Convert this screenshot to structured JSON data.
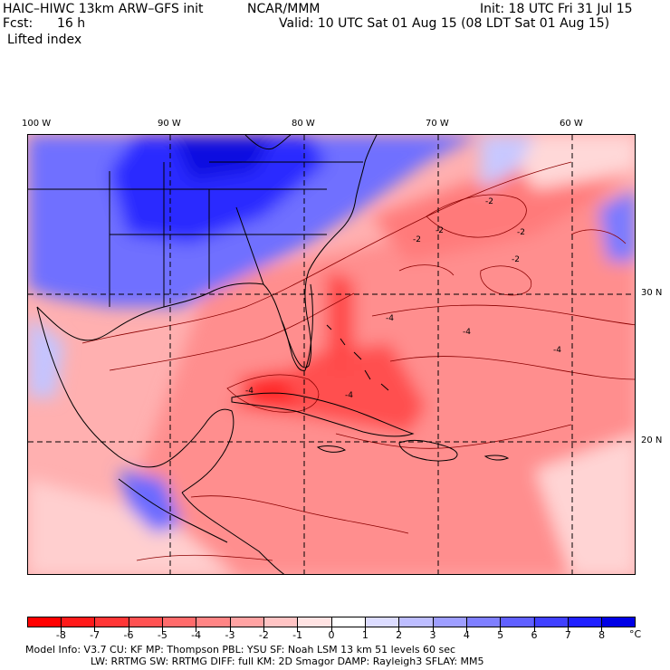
{
  "header": {
    "model": "HAIC–HIWC 13km ARW–GFS init",
    "org": "NCAR/MMM",
    "init": "Init: 18 UTC Fri 31 Jul 15",
    "fcst_label": "Fcst:",
    "fcst_value": "16 h",
    "valid": "Valid: 10 UTC Sat 01 Aug 15 (08 LDT Sat 01 Aug 15)",
    "field": "Lifted index"
  },
  "axes": {
    "lon_labels": [
      "100 W",
      "90 W",
      "80 W",
      "70 W",
      "60 W"
    ],
    "lat_labels": [
      "30 N",
      "20 N"
    ]
  },
  "contour_labels": [
    "-2",
    "-2",
    "-2",
    "-2",
    "-2",
    "-4",
    "-4",
    "-4",
    "-4",
    "-4"
  ],
  "colorbar": {
    "labels": [
      "-8",
      "-7",
      "-6",
      "-5",
      "-4",
      "-3",
      "-2",
      "-1",
      "0",
      "1",
      "2",
      "3",
      "4",
      "5",
      "6",
      "7",
      "8"
    ],
    "unit": "°C",
    "colors": [
      "#ff0000",
      "#ff1a1a",
      "#ff3636",
      "#ff5252",
      "#ff6b6b",
      "#ff8585",
      "#ffa3a3",
      "#ffc4c4",
      "#ffe3e3",
      "#ffffff",
      "#dcdcff",
      "#bdbdff",
      "#9e9eff",
      "#7f7fff",
      "#6060ff",
      "#4040ff",
      "#2020ff",
      "#0000e6"
    ]
  },
  "footer": {
    "line1": "Model Info: V3.7    CU: KF    MP: Thompson    PBL: YSU    SF: Noah LSM    13 km    51 levels    60 sec",
    "line2": "LW: RRTMG    SW: RRTMG   DIFF: full    KM: 2D Smagor  DAMP: Rayleigh3   SFLAY: MM5"
  },
  "colors": {
    "strong_negative": "#ff3030",
    "negative": "#ff8080",
    "weak_negative": "#ffc0c0",
    "positive": "#7070ff",
    "strong_positive": "#1010e6",
    "land_border": "#000000",
    "grid": "#000000",
    "contour": "#8b0000"
  }
}
